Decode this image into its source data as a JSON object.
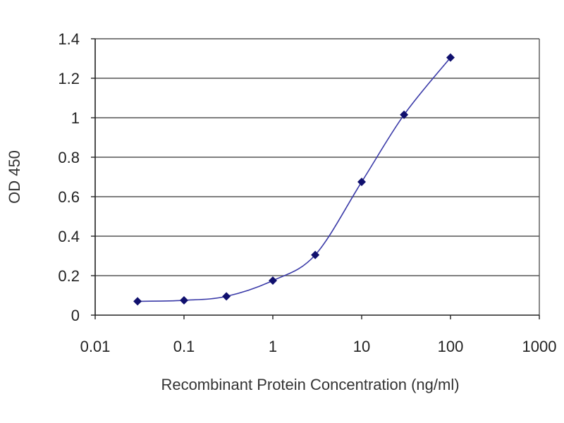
{
  "chart_data": {
    "type": "line",
    "title": "",
    "xlabel": "Recombinant Protein Concentration (ng/ml)",
    "ylabel": "OD 450",
    "x_scale": "log",
    "xlim": [
      0.01,
      1000
    ],
    "ylim": [
      0,
      1.4
    ],
    "x_ticks": [
      "0.01",
      "0.1",
      "1",
      "10",
      "100",
      "1000"
    ],
    "y_ticks": [
      "0",
      "0.2",
      "0.4",
      "0.6",
      "0.8",
      "1",
      "1.2",
      "1.4"
    ],
    "grid": "horizontal",
    "legend": "none",
    "series": [
      {
        "x": [
          0.03,
          0.1,
          0.3,
          1,
          3,
          10,
          30,
          100
        ],
        "y": [
          0.07,
          0.075,
          0.095,
          0.175,
          0.305,
          0.675,
          1.015,
          1.305
        ]
      }
    ],
    "colors": {
      "line": "#3a3aa8",
      "marker": "#10106e",
      "grid": "#555555",
      "axis": "#222222"
    }
  }
}
